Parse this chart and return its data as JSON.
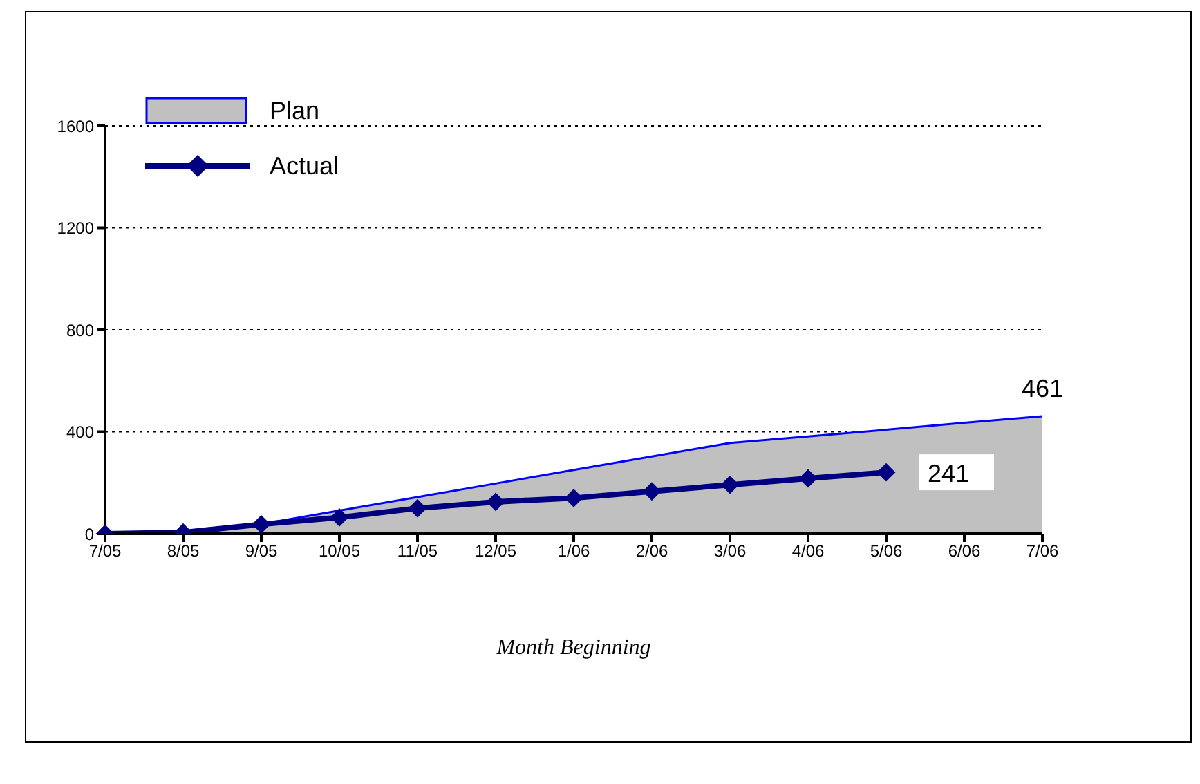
{
  "chart_data": {
    "type": "area",
    "xlabel": "Month Beginning",
    "categories": [
      "7/05",
      "8/05",
      "9/05",
      "10/05",
      "11/05",
      "12/05",
      "1/06",
      "2/06",
      "3/06",
      "4/06",
      "5/06",
      "6/06",
      "7/06"
    ],
    "series": [
      {
        "name": "Plan",
        "color": "#c0c0c0",
        "values": [
          0,
          5,
          38,
          91,
          144,
          197,
          250,
          303,
          356,
          382,
          408,
          435,
          461
        ]
      },
      {
        "name": "Actual",
        "type": "line",
        "color": "#000080",
        "marker": "diamond",
        "values": [
          0,
          5,
          37,
          64,
          100,
          125,
          140,
          166,
          192,
          217,
          241,
          null,
          null
        ]
      }
    ],
    "ylim": [
      0,
      1600
    ],
    "yticks": [
      0,
      400,
      800,
      1200,
      1600
    ],
    "grid": "y",
    "legend": "top left",
    "annotations": [
      {
        "text": "461",
        "x": "7/06",
        "y": 461
      },
      {
        "text": "241",
        "x": "5/06",
        "y": 241
      }
    ]
  }
}
